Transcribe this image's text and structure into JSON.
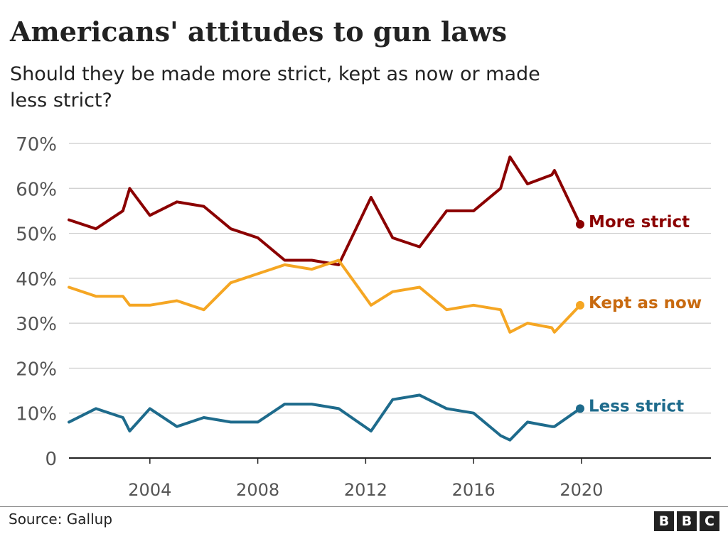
{
  "header": {
    "title": "Americans' attitudes to gun laws",
    "subtitle": "Should they be made more strict, kept as now or made less strict?"
  },
  "footer": {
    "source": "Source: Gallup",
    "logo_letters": [
      "B",
      "B",
      "C"
    ]
  },
  "chart_data": {
    "type": "line",
    "title": "Americans' attitudes to gun laws",
    "subtitle": "Should they be made more strict, kept as now or made less strict?",
    "xlabel": "",
    "ylabel": "",
    "xlim": [
      2001,
      2024.8
    ],
    "ylim": [
      0,
      70
    ],
    "x_ticks": [
      2004,
      2008,
      2012,
      2016,
      2020
    ],
    "y_ticks": [
      {
        "value": 0,
        "label": "0"
      },
      {
        "value": 10,
        "label": "10%"
      },
      {
        "value": 20,
        "label": "20%"
      },
      {
        "value": 30,
        "label": "30%"
      },
      {
        "value": 40,
        "label": "40%"
      },
      {
        "value": 50,
        "label": "50%"
      },
      {
        "value": 60,
        "label": "60%"
      },
      {
        "value": 70,
        "label": "70%"
      }
    ],
    "grid": true,
    "legend": "direct labels at line ends",
    "series": [
      {
        "name": "More strict",
        "color": "#8b0000",
        "label_color": "#8b0000",
        "points": [
          [
            2001,
            53
          ],
          [
            2002,
            51
          ],
          [
            2003,
            55
          ],
          [
            2003.25,
            60
          ],
          [
            2004,
            54
          ],
          [
            2005,
            57
          ],
          [
            2006,
            56
          ],
          [
            2007,
            51
          ],
          [
            2008,
            49
          ],
          [
            2009,
            44
          ],
          [
            2010,
            44
          ],
          [
            2011,
            43
          ],
          [
            2012.2,
            58
          ],
          [
            2013,
            49
          ],
          [
            2014,
            47
          ],
          [
            2015,
            55
          ],
          [
            2016,
            55
          ],
          [
            2017,
            60
          ],
          [
            2017.35,
            67
          ],
          [
            2018,
            61
          ],
          [
            2018.9,
            63
          ],
          [
            2019,
            64
          ],
          [
            2019.95,
            52
          ]
        ]
      },
      {
        "name": "Kept as now",
        "color": "#f5a623",
        "label_color": "#c86a10",
        "points": [
          [
            2001,
            38
          ],
          [
            2002,
            36
          ],
          [
            2003,
            36
          ],
          [
            2003.25,
            34
          ],
          [
            2004,
            34
          ],
          [
            2005,
            35
          ],
          [
            2006,
            33
          ],
          [
            2007,
            39
          ],
          [
            2008,
            41
          ],
          [
            2009,
            43
          ],
          [
            2010,
            42
          ],
          [
            2011,
            44
          ],
          [
            2012.2,
            34
          ],
          [
            2013,
            37
          ],
          [
            2014,
            38
          ],
          [
            2015,
            33
          ],
          [
            2016,
            34
          ],
          [
            2017,
            33
          ],
          [
            2017.35,
            28
          ],
          [
            2018,
            30
          ],
          [
            2018.9,
            29
          ],
          [
            2019,
            28
          ],
          [
            2019.95,
            34
          ]
        ]
      },
      {
        "name": "Less strict",
        "color": "#1e6b8c",
        "label_color": "#1e6b8c",
        "points": [
          [
            2001,
            8
          ],
          [
            2002,
            11
          ],
          [
            2003,
            9
          ],
          [
            2003.25,
            6
          ],
          [
            2004,
            11
          ],
          [
            2005,
            7
          ],
          [
            2006,
            9
          ],
          [
            2007,
            8
          ],
          [
            2008,
            8
          ],
          [
            2009,
            12
          ],
          [
            2010,
            12
          ],
          [
            2011,
            11
          ],
          [
            2012.2,
            6
          ],
          [
            2013,
            13
          ],
          [
            2014,
            14
          ],
          [
            2015,
            11
          ],
          [
            2016,
            10
          ],
          [
            2017,
            5
          ],
          [
            2017.35,
            4
          ],
          [
            2018,
            8
          ],
          [
            2018.9,
            7
          ],
          [
            2019,
            7
          ],
          [
            2019.95,
            11
          ]
        ]
      }
    ]
  }
}
